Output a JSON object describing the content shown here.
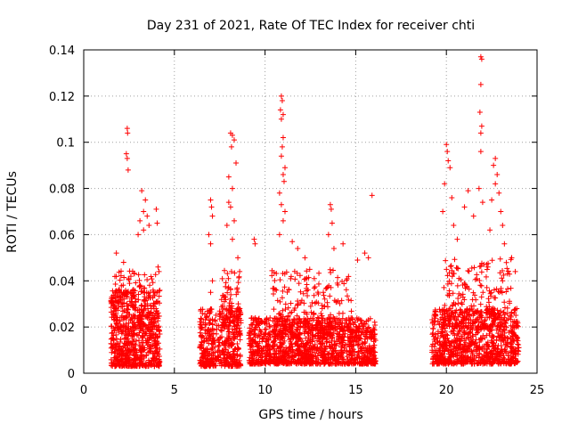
{
  "chart_data": {
    "type": "scatter",
    "title": "Day 231 of 2021, Rate Of TEC Index for receiver chti",
    "xlabel": "GPS time / hours",
    "ylabel": "ROTI / TECUs",
    "xlim": [
      0,
      25
    ],
    "ylim": [
      0,
      0.14
    ],
    "grid": true,
    "marker": "+",
    "series_color": "#ff0000",
    "xticks": [
      0,
      5,
      10,
      15,
      20,
      25
    ],
    "xtick_labels": [
      "0",
      "5",
      "10",
      "15",
      "20",
      "25"
    ],
    "yticks": [
      0,
      0.02,
      0.04,
      0.06,
      0.08,
      0.1,
      0.12,
      0.14
    ],
    "ytick_labels": [
      "0",
      "0.02",
      "0.04",
      "0.06",
      "0.08",
      "0.1",
      "0.12",
      "0.14"
    ],
    "series": [
      {
        "name": "ROTI",
        "points": [
          [
            2.4,
            0.106
          ],
          [
            2.42,
            0.104
          ],
          [
            2.35,
            0.095
          ],
          [
            2.4,
            0.093
          ],
          [
            2.45,
            0.088
          ],
          [
            3.2,
            0.079
          ],
          [
            3.4,
            0.075
          ],
          [
            3.3,
            0.07
          ],
          [
            3.5,
            0.068
          ],
          [
            3.1,
            0.066
          ],
          [
            3.6,
            0.064
          ],
          [
            4.0,
            0.071
          ],
          [
            4.05,
            0.065
          ],
          [
            3.0,
            0.06
          ],
          [
            3.3,
            0.062
          ],
          [
            1.8,
            0.052
          ],
          [
            2.2,
            0.048
          ],
          [
            4.1,
            0.046
          ],
          [
            4.15,
            0.044
          ],
          [
            2.6,
            0.042
          ],
          [
            7.0,
            0.075
          ],
          [
            7.05,
            0.072
          ],
          [
            7.1,
            0.068
          ],
          [
            6.9,
            0.06
          ],
          [
            7.0,
            0.056
          ],
          [
            7.1,
            0.04
          ],
          [
            7.0,
            0.035
          ],
          [
            8.1,
            0.104
          ],
          [
            8.2,
            0.103
          ],
          [
            8.3,
            0.101
          ],
          [
            8.15,
            0.098
          ],
          [
            8.4,
            0.091
          ],
          [
            8.0,
            0.085
          ],
          [
            8.2,
            0.08
          ],
          [
            8.0,
            0.074
          ],
          [
            8.1,
            0.072
          ],
          [
            7.9,
            0.064
          ],
          [
            8.3,
            0.066
          ],
          [
            8.2,
            0.058
          ],
          [
            8.5,
            0.05
          ],
          [
            8.6,
            0.044
          ],
          [
            9.4,
            0.058
          ],
          [
            9.45,
            0.056
          ],
          [
            10.9,
            0.12
          ],
          [
            10.95,
            0.118
          ],
          [
            10.85,
            0.114
          ],
          [
            11.0,
            0.112
          ],
          [
            10.9,
            0.11
          ],
          [
            11.0,
            0.102
          ],
          [
            10.95,
            0.098
          ],
          [
            10.9,
            0.094
          ],
          [
            11.1,
            0.089
          ],
          [
            11.0,
            0.086
          ],
          [
            11.05,
            0.083
          ],
          [
            10.8,
            0.078
          ],
          [
            10.9,
            0.073
          ],
          [
            11.1,
            0.07
          ],
          [
            11.0,
            0.066
          ],
          [
            10.8,
            0.06
          ],
          [
            11.5,
            0.057
          ],
          [
            11.8,
            0.054
          ],
          [
            12.2,
            0.05
          ],
          [
            13.6,
            0.073
          ],
          [
            13.65,
            0.071
          ],
          [
            13.7,
            0.065
          ],
          [
            13.5,
            0.06
          ],
          [
            13.8,
            0.054
          ],
          [
            14.3,
            0.056
          ],
          [
            15.1,
            0.049
          ],
          [
            15.5,
            0.052
          ],
          [
            15.7,
            0.05
          ],
          [
            15.9,
            0.077
          ],
          [
            20.0,
            0.099
          ],
          [
            20.05,
            0.096
          ],
          [
            20.1,
            0.092
          ],
          [
            20.2,
            0.089
          ],
          [
            19.9,
            0.082
          ],
          [
            20.3,
            0.076
          ],
          [
            19.8,
            0.07
          ],
          [
            20.4,
            0.064
          ],
          [
            20.6,
            0.058
          ],
          [
            21.9,
            0.137
          ],
          [
            21.95,
            0.136
          ],
          [
            21.9,
            0.125
          ],
          [
            21.85,
            0.113
          ],
          [
            21.95,
            0.107
          ],
          [
            21.9,
            0.104
          ],
          [
            21.9,
            0.096
          ],
          [
            21.8,
            0.08
          ],
          [
            22.0,
            0.074
          ],
          [
            22.7,
            0.093
          ],
          [
            22.6,
            0.09
          ],
          [
            22.8,
            0.086
          ],
          [
            22.7,
            0.082
          ],
          [
            22.9,
            0.078
          ],
          [
            22.5,
            0.075
          ],
          [
            23.0,
            0.07
          ],
          [
            23.1,
            0.064
          ],
          [
            22.4,
            0.062
          ],
          [
            23.2,
            0.056
          ],
          [
            21.2,
            0.079
          ],
          [
            21.0,
            0.072
          ],
          [
            21.5,
            0.068
          ],
          [
            23.6,
            0.05
          ],
          [
            23.8,
            0.044
          ]
        ],
        "dense_clusters": [
          {
            "x_range": [
              1.5,
              4.2
            ],
            "y_range": [
              0.003,
              0.036
            ],
            "count": 700
          },
          {
            "x_range": [
              1.7,
              4.0
            ],
            "y_range": [
              0.02,
              0.045
            ],
            "count": 120
          },
          {
            "x_range": [
              6.4,
              8.7
            ],
            "y_range": [
              0.003,
              0.028
            ],
            "count": 420
          },
          {
            "x_range": [
              7.6,
              8.6
            ],
            "y_range": [
              0.02,
              0.045
            ],
            "count": 80
          },
          {
            "x_range": [
              9.1,
              16.1
            ],
            "y_range": [
              0.004,
              0.024
            ],
            "count": 1300
          },
          {
            "x_range": [
              10.3,
              14.8
            ],
            "y_range": [
              0.015,
              0.045
            ],
            "count": 260
          },
          {
            "x_range": [
              19.2,
              24.0
            ],
            "y_range": [
              0.004,
              0.028
            ],
            "count": 900
          },
          {
            "x_range": [
              19.8,
              23.6
            ],
            "y_range": [
              0.02,
              0.05
            ],
            "count": 220
          }
        ]
      }
    ]
  }
}
